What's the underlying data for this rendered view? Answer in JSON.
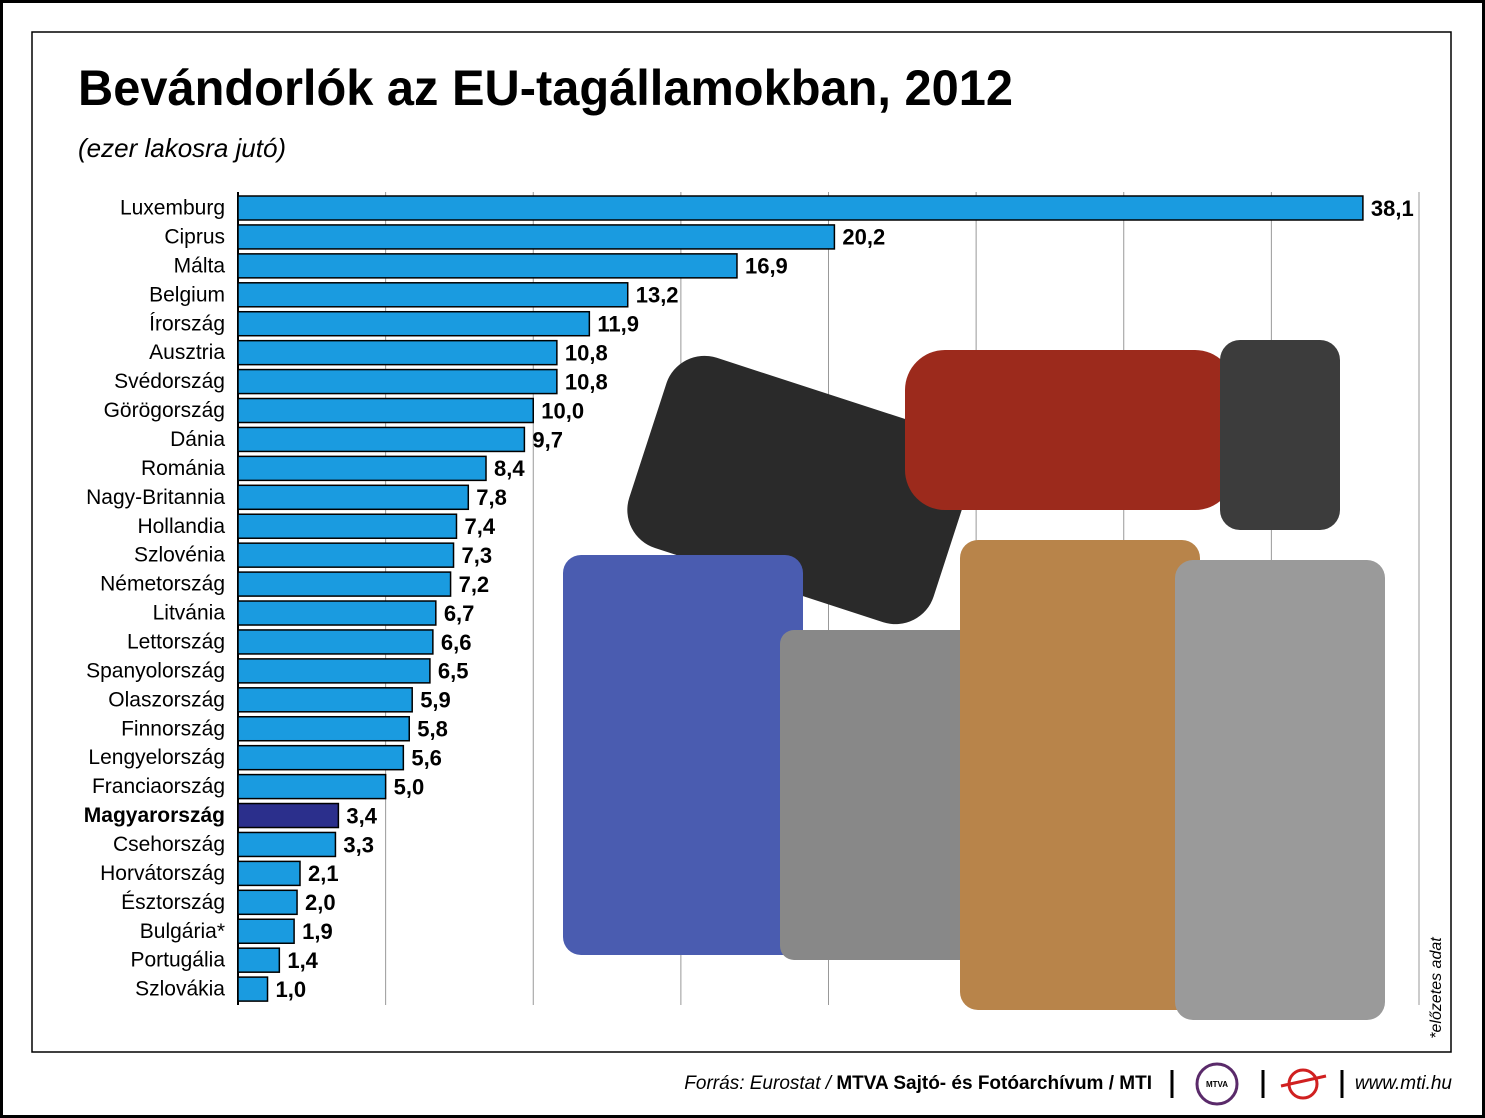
{
  "chart_data": {
    "type": "hbar",
    "title": "Bevándorlók az EU-tagállamokban, 2012",
    "subtitle": "(ezer lakosra jutó)",
    "categories": [
      "Luxemburg",
      "Ciprus",
      "Málta",
      "Belgium",
      "Írország",
      "Ausztria",
      "Svédország",
      "Görögország",
      "Dánia",
      "Románia",
      "Nagy-Britannia",
      "Hollandia",
      "Szlovénia",
      "Németország",
      "Litvánia",
      "Lettország",
      "Spanyolország",
      "Olaszország",
      "Finnország",
      "Lengyelország",
      "Franciaország",
      "Magyarország",
      "Csehország",
      "Horvátország",
      "Észtország",
      "Bulgária*",
      "Portugália",
      "Szlovákia"
    ],
    "values": [
      38.1,
      20.2,
      16.9,
      13.2,
      11.9,
      10.8,
      10.8,
      10.0,
      9.7,
      8.4,
      7.8,
      7.4,
      7.3,
      7.2,
      6.7,
      6.6,
      6.5,
      5.9,
      5.8,
      5.6,
      5.0,
      3.4,
      3.3,
      2.1,
      2.0,
      1.9,
      1.4,
      1.0
    ],
    "value_labels": [
      "38,1",
      "20,2",
      "16,9",
      "13,2",
      "11,9",
      "10,8",
      "10,8",
      "10,0",
      "9,7",
      "8,4",
      "7,8",
      "7,4",
      "7,3",
      "7,2",
      "6,7",
      "6,6",
      "6,5",
      "5,9",
      "5,8",
      "5,6",
      "5,0",
      "3,4",
      "3,3",
      "2,1",
      "2,0",
      "1,9",
      "1,4",
      "1,0"
    ],
    "colors": [
      "#1a9be0",
      "#1a9be0",
      "#1a9be0",
      "#1a9be0",
      "#1a9be0",
      "#1a9be0",
      "#1a9be0",
      "#1a9be0",
      "#1a9be0",
      "#1a9be0",
      "#1a9be0",
      "#1a9be0",
      "#1a9be0",
      "#1a9be0",
      "#1a9be0",
      "#1a9be0",
      "#1a9be0",
      "#1a9be0",
      "#1a9be0",
      "#1a9be0",
      "#1a9be0",
      "#2b2f8c",
      "#1a9be0",
      "#1a9be0",
      "#1a9be0",
      "#1a9be0",
      "#1a9be0",
      "#1a9be0"
    ],
    "xlim": [
      0,
      40
    ],
    "xticks": [
      0,
      5,
      10,
      15,
      20,
      25,
      30,
      35,
      40
    ],
    "grid": true,
    "footnote": "*előzetes adat",
    "source": "Forrás: Eurostat /",
    "source_credit": "MTVA Sajtó- és Fotóarchívum / MTI",
    "logo": "MTVA",
    "website": "www.mti.hu"
  }
}
